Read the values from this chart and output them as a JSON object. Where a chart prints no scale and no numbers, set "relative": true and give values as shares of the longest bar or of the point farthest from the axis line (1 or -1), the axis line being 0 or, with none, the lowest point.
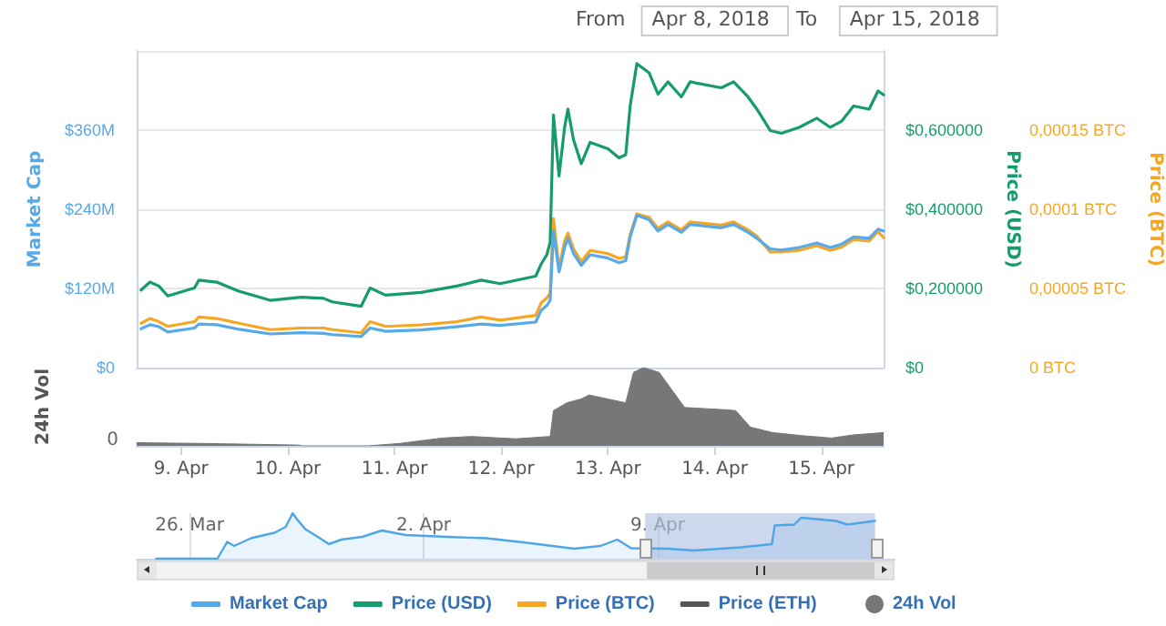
{
  "chart_data": [
    {
      "type": "line",
      "ylabel": "Market Cap",
      "y2label": "Price (USD)",
      "y3label": "Price (BTC)",
      "annotations": [
        "From",
        "Apr 8, 2018",
        "To",
        "Apr 15, 2018"
      ],
      "x": [
        "2018-04-08T15:00",
        "2018-04-08T17:00",
        "2018-04-08T19:00",
        "2018-04-08T21:00",
        "2018-04-09T03:00",
        "2018-04-09T04:00",
        "2018-04-09T08:00",
        "2018-04-09T13:00",
        "2018-04-09T20:00",
        "2018-04-10T03:00",
        "2018-04-10T08:00",
        "2018-04-10T10:00",
        "2018-04-10T16:30",
        "2018-04-10T18:30",
        "2018-04-10T22:00",
        "2018-04-11T06:00",
        "2018-04-11T14:00",
        "2018-04-11T19:30",
        "2018-04-11T23:45",
        "2018-04-12T07:45",
        "2018-04-12T09:00",
        "2018-04-12T10:15",
        "2018-04-12T11:00",
        "2018-04-12T11:45",
        "2018-04-12T13:00",
        "2018-04-12T14:15",
        "2018-04-12T15:00",
        "2018-04-12T16:15",
        "2018-04-12T18:00",
        "2018-04-12T20:00",
        "2018-04-13T00:00",
        "2018-04-13T02:30",
        "2018-04-13T04:00",
        "2018-04-13T05:00",
        "2018-04-13T06:30",
        "2018-04-13T09:15",
        "2018-04-13T11:15",
        "2018-04-13T13:30",
        "2018-04-13T16:30",
        "2018-04-13T18:30",
        "2018-04-14T01:30",
        "2018-04-14T04:15",
        "2018-04-14T07:30",
        "2018-04-14T09:30",
        "2018-04-14T12:30",
        "2018-04-14T15:00",
        "2018-04-14T19:00",
        "2018-04-14T23:00",
        "2018-04-15T02:00",
        "2018-04-15T04:30",
        "2018-04-15T07:15",
        "2018-04-15T10:45",
        "2018-04-15T12:45",
        "2018-04-15T14:00"
      ],
      "series": [
        {
          "name": "Market Cap",
          "color": "#58a9e8",
          "values": [
            59,
            65,
            62,
            54,
            60,
            66,
            65,
            58,
            51,
            53,
            52,
            50,
            47,
            60,
            55,
            57,
            62,
            66,
            64,
            69,
            87,
            94,
            102,
            207,
            145,
            182,
            196,
            173,
            155,
            171,
            166,
            159,
            162,
            198,
            231,
            224,
            207,
            217,
            205,
            217,
            212,
            217,
            205,
            196,
            180,
            178,
            182,
            189,
            182,
            187,
            198,
            196,
            210,
            207
          ]
        },
        {
          "name": "Price (USD)",
          "color": "#159b6e",
          "axis": "y2",
          "values": [
            0.196,
            0.216,
            0.206,
            0.181,
            0.201,
            0.221,
            0.216,
            0.193,
            0.17,
            0.178,
            0.175,
            0.166,
            0.155,
            0.201,
            0.183,
            0.19,
            0.206,
            0.221,
            0.212,
            0.231,
            0.262,
            0.285,
            0.316,
            0.638,
            0.484,
            0.607,
            0.653,
            0.576,
            0.515,
            0.569,
            0.553,
            0.53,
            0.538,
            0.661,
            0.768,
            0.745,
            0.691,
            0.722,
            0.684,
            0.722,
            0.707,
            0.722,
            0.684,
            0.653,
            0.599,
            0.592,
            0.607,
            0.63,
            0.607,
            0.622,
            0.661,
            0.653,
            0.699,
            0.689
          ]
        },
        {
          "name": "Price (BTC)",
          "color": "#f5a623",
          "axis": "y3",
          "values": [
            2.8e-05,
            3.1e-05,
            2.9e-05,
            2.6e-05,
            2.9e-05,
            3.2e-05,
            3.1e-05,
            2.8e-05,
            2.4e-05,
            2.5e-05,
            2.5e-05,
            2.4e-05,
            2.2e-05,
            2.9e-05,
            2.6e-05,
            2.7e-05,
            2.9e-05,
            3.2e-05,
            3e-05,
            3.3e-05,
            4.1e-05,
            4.4e-05,
            4.7e-05,
            9.4e-05,
            6.3e-05,
            8e-05,
            8.5e-05,
            7.5e-05,
            6.7e-05,
            7.4e-05,
            7.2e-05,
            6.9e-05,
            7e-05,
            8.4e-05,
            9.7e-05,
            9.5e-05,
            8.8e-05,
            9.2e-05,
            8.7e-05,
            9.2e-05,
            9e-05,
            9.2e-05,
            8.7e-05,
            8.3e-05,
            7.3e-05,
            7.3e-05,
            7.4e-05,
            7.7e-05,
            7.4e-05,
            7.6e-05,
            8.1e-05,
            8e-05,
            8.6e-05,
            8.2e-05
          ]
        },
        {
          "name": "Price (ETH)",
          "color": "#555555",
          "values": [
            null,
            null,
            null,
            null,
            null,
            null,
            null,
            null,
            null,
            null,
            null,
            null,
            null,
            null,
            null,
            null,
            null,
            null,
            null,
            null,
            null,
            null,
            null,
            null,
            null,
            null,
            null,
            null,
            null,
            null,
            null,
            null,
            null,
            null,
            null,
            null,
            null,
            null,
            null,
            null,
            null,
            null,
            null,
            null,
            null,
            null,
            null,
            null,
            null,
            null,
            null,
            null,
            null,
            null
          ]
        }
      ],
      "xlim": [
        "2018-04-08T14:00",
        "2018-04-15T14:00"
      ],
      "ylim": [
        0,
        480
      ],
      "yticks": [
        {
          "value": 0,
          "label": "$0"
        },
        {
          "value": 120,
          "label": "$120M"
        },
        {
          "value": 240,
          "label": "$240M"
        },
        {
          "value": 360,
          "label": "$360M"
        },
        {
          "value": 480,
          "label": null
        }
      ],
      "y2lim": [
        0,
        0.8
      ],
      "y2ticks": [
        {
          "value": 0,
          "label": "$0"
        },
        {
          "value": 0.2,
          "label": "$0,200000"
        },
        {
          "value": 0.4,
          "label": "$0,400000"
        },
        {
          "value": 0.6,
          "label": "$0,600000"
        },
        {
          "value": 0.8,
          "label": null
        }
      ],
      "y3lim": [
        0,
        0.0002
      ],
      "y3ticks": [
        {
          "value": 0,
          "label": "0 BTC"
        },
        {
          "value": 5e-05,
          "label": "0,00005 BTC"
        },
        {
          "value": 0.0001,
          "label": "0,0001 BTC"
        },
        {
          "value": 0.00015,
          "label": "0,00015 BTC"
        },
        {
          "value": 0.0002,
          "label": null
        }
      ],
      "grid": "y",
      "legend": "bottom",
      "marker": "none",
      "tick_labels": "y"
    },
    {
      "type": "area",
      "relative": true,
      "ylabel": "24h Vol",
      "annotations": [
        "0"
      ],
      "marker": "none",
      "legend": "bottom",
      "x": [
        "2018-04-08T14:00",
        "2018-04-09T06:00",
        "2018-04-10T02:30",
        "2018-04-10T03:15",
        "2018-04-10T18:00",
        "2018-04-11T01:00",
        "2018-04-11T10:45",
        "2018-04-11T17:15",
        "2018-04-12T03:15",
        "2018-04-12T11:00",
        "2018-04-12T11:45",
        "2018-04-12T14:45",
        "2018-04-12T18:00",
        "2018-04-12T19:45",
        "2018-04-13T04:00",
        "2018-04-13T05:45",
        "2018-04-13T08:00",
        "2018-04-13T11:30",
        "2018-04-13T17:15",
        "2018-04-14T03:00",
        "2018-04-14T04:45",
        "2018-04-14T08:00",
        "2018-04-14T13:00",
        "2018-04-14T19:45",
        "2018-04-15T02:15",
        "2018-04-15T07:15",
        "2018-04-15T14:00"
      ],
      "series": [
        {
          "name": "24h Vol",
          "color": "#777777",
          "values": [
            0.04,
            0.03,
            0.01,
            0,
            0,
            0.03,
            0.1,
            0.12,
            0.09,
            0.12,
            0.45,
            0.55,
            0.6,
            0.65,
            0.55,
            0.94,
            1,
            0.94,
            0.49,
            0.46,
            0.45,
            0.24,
            0.17,
            0.13,
            0.1,
            0.14,
            0.17
          ]
        }
      ],
      "xlim": [
        "2018-04-08T14:00",
        "2018-04-15T14:00"
      ],
      "xticks": [
        {
          "value": "2018-04-09",
          "label": "9. Apr"
        },
        {
          "value": "2018-04-10",
          "label": "10. Apr"
        },
        {
          "value": "2018-04-11",
          "label": "11. Apr"
        },
        {
          "value": "2018-04-12",
          "label": "12. Apr"
        },
        {
          "value": "2018-04-13",
          "label": "13. Apr"
        },
        {
          "value": "2018-04-14",
          "label": "14. Apr"
        },
        {
          "value": "2018-04-15",
          "label": "15. Apr"
        }
      ]
    },
    {
      "type": "area",
      "relative": true,
      "marker": "none",
      "grid": "x",
      "color": "#4ea6e6",
      "x": [
        "2018-03-25T00:00",
        "2018-03-26T20:00",
        "2018-03-27T03:00",
        "2018-03-27T08:00",
        "2018-03-27T20:00",
        "2018-03-28T13:00",
        "2018-03-28T21:00",
        "2018-03-29T02:00",
        "2018-03-29T05:00",
        "2018-03-29T11:00",
        "2018-03-29T20:00",
        "2018-03-30T04:00",
        "2018-03-30T13:00",
        "2018-03-31T04:00",
        "2018-03-31T18:00",
        "2018-04-01T11:00",
        "2018-04-02T16:00",
        "2018-04-03T21:00",
        "2018-04-05T02:00",
        "2018-04-06T12:00",
        "2018-04-07T07:00",
        "2018-04-07T19:00",
        "2018-04-08T05:00",
        "2018-04-09T07:00",
        "2018-04-10T02:00",
        "2018-04-11T12:00",
        "2018-04-12T10:00",
        "2018-04-12T12:00",
        "2018-04-13T02:00",
        "2018-04-13T07:00",
        "2018-04-14T08:00",
        "2018-04-14T16:00",
        "2018-04-15T12:00"
      ],
      "values": [
        0,
        0,
        0.37,
        0.28,
        0.45,
        0.57,
        0.7,
        1,
        0.87,
        0.65,
        0.48,
        0.32,
        0.42,
        0.48,
        0.62,
        0.52,
        0.48,
        0.45,
        0.35,
        0.22,
        0.28,
        0.42,
        0.23,
        0.22,
        0.18,
        0.25,
        0.32,
        0.73,
        0.75,
        0.9,
        0.83,
        0.75,
        0.83
      ],
      "xlim": [
        "2018-03-24T10:00",
        "2018-04-16T02:00"
      ],
      "xticks": [
        {
          "value": "2018-03-26",
          "label": "26. Mar"
        },
        {
          "value": "2018-04-02",
          "label": "2. Apr"
        },
        {
          "value": "2018-04-09",
          "label": "9. Apr"
        }
      ],
      "bands": [
        {
          "axis": "x",
          "from": "2018-04-08T15:00",
          "to": "2018-04-15T12:00",
          "color": "#b4c3e3"
        }
      ]
    }
  ]
}
